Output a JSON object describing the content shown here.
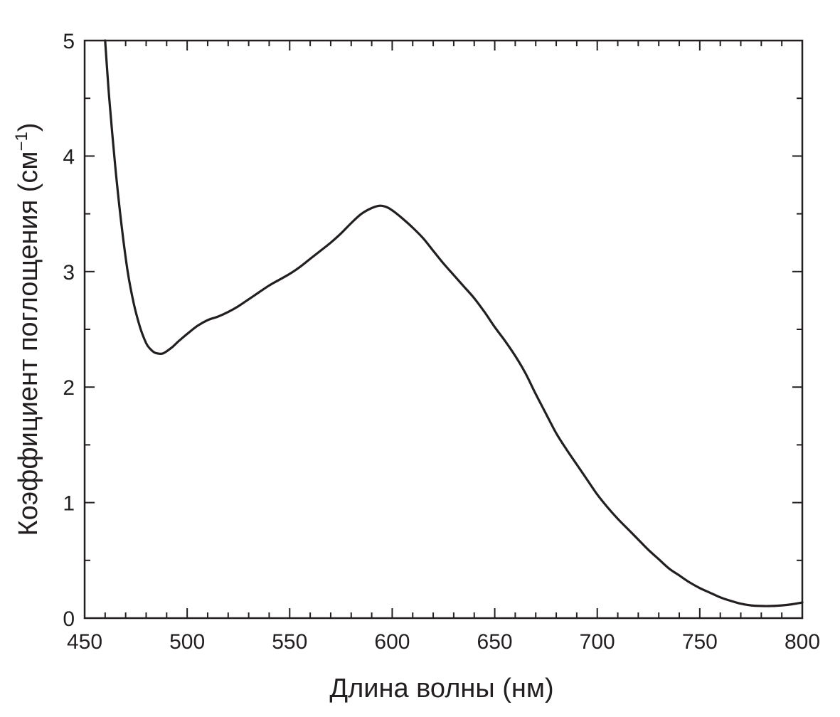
{
  "chart_data": {
    "type": "line",
    "title": "",
    "xlabel": "Длина волны (нм)",
    "ylabel": {
      "prefix": "Коэффициент поглощения (см",
      "superscript": "−1",
      "suffix": ")"
    },
    "xlim": [
      450,
      800
    ],
    "ylim": [
      0,
      5
    ],
    "x_ticks": [
      450,
      500,
      550,
      600,
      650,
      700,
      750,
      800
    ],
    "x_tick_labels": [
      "450",
      "500",
      "550",
      "600",
      "650",
      "700",
      "750",
      "800"
    ],
    "y_ticks": [
      0,
      1,
      2,
      3,
      4,
      5
    ],
    "y_tick_labels": [
      "0",
      "1",
      "2",
      "3",
      "4",
      "5"
    ],
    "x_minor_step": 10,
    "y_minor_step": 0.5,
    "grid": false,
    "legend": "none",
    "line_color": "#231f20",
    "series": [
      {
        "x": [
          460,
          462,
          465,
          468,
          471,
          474,
          477,
          480,
          482,
          484,
          486,
          488,
          490,
          493,
          496,
          500,
          505,
          510,
          515,
          520,
          525,
          530,
          535,
          540,
          545,
          550,
          555,
          560,
          565,
          570,
          575,
          580,
          585,
          590,
          594,
          597,
          600,
          605,
          610,
          615,
          620,
          625,
          630,
          635,
          640,
          645,
          650,
          655,
          660,
          665,
          670,
          675,
          680,
          685,
          690,
          695,
          700,
          705,
          710,
          715,
          720,
          725,
          730,
          735,
          740,
          745,
          750,
          755,
          760,
          765,
          770,
          775,
          780,
          785,
          790,
          795,
          800
        ],
        "y": [
          5.0,
          4.5,
          3.9,
          3.4,
          3.0,
          2.72,
          2.52,
          2.38,
          2.33,
          2.3,
          2.29,
          2.29,
          2.31,
          2.35,
          2.4,
          2.46,
          2.53,
          2.58,
          2.61,
          2.65,
          2.7,
          2.76,
          2.82,
          2.88,
          2.93,
          2.98,
          3.04,
          3.11,
          3.18,
          3.25,
          3.33,
          3.42,
          3.5,
          3.55,
          3.57,
          3.56,
          3.53,
          3.46,
          3.38,
          3.29,
          3.18,
          3.07,
          2.97,
          2.87,
          2.77,
          2.65,
          2.52,
          2.4,
          2.27,
          2.12,
          1.94,
          1.77,
          1.6,
          1.46,
          1.33,
          1.2,
          1.07,
          0.96,
          0.86,
          0.77,
          0.68,
          0.59,
          0.51,
          0.43,
          0.37,
          0.31,
          0.26,
          0.22,
          0.18,
          0.15,
          0.125,
          0.11,
          0.105,
          0.105,
          0.11,
          0.12,
          0.135
        ]
      }
    ]
  }
}
